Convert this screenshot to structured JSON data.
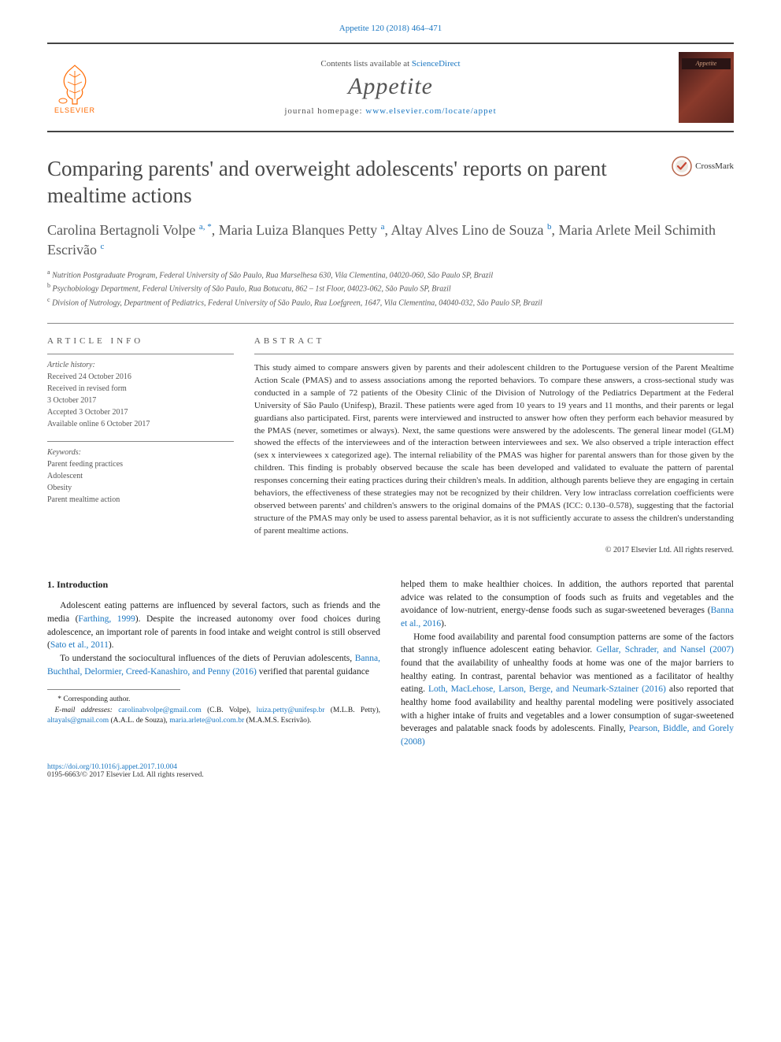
{
  "citation": "Appetite 120 (2018) 464–471",
  "banner": {
    "contents_prefix": "Contents lists available at ",
    "contents_link_text": "ScienceDirect",
    "journal": "Appetite",
    "homepage_prefix": "journal homepage: ",
    "homepage_url": "www.elsevier.com/locate/appet",
    "elsevier_label": "ELSEVIER",
    "cover_label": "Appetite"
  },
  "crossmark_label": "CrossMark",
  "title": "Comparing parents' and overweight adolescents' reports on parent mealtime actions",
  "authors_html": "Carolina Bertagnoli Volpe <sup>a, *</sup>, Maria Luiza Blanques Petty <sup>a</sup>, Altay Alves Lino de Souza <sup>b</sup>, Maria Arlete Meil Schimith Escrivão <sup>c</sup>",
  "affiliations": {
    "a": "Nutrition Postgraduate Program, Federal University of São Paulo, Rua Marselhesa 630, Vila Clementina, 04020-060, São Paulo SP, Brazil",
    "b": "Psychobiology Department, Federal University of São Paulo, Rua Botucatu, 862 – 1st Floor, 04023-062, São Paulo SP, Brazil",
    "c": "Division of Nutrology, Department of Pediatrics, Federal University of São Paulo, Rua Loefgreen, 1647, Vila Clementina, 04040-032, São Paulo SP, Brazil"
  },
  "info": {
    "heading": "ARTICLE INFO",
    "history_label": "Article history:",
    "history": [
      "Received 24 October 2016",
      "Received in revised form",
      "3 October 2017",
      "Accepted 3 October 2017",
      "Available online 6 October 2017"
    ],
    "keywords_label": "Keywords:",
    "keywords": [
      "Parent feeding practices",
      "Adolescent",
      "Obesity",
      "Parent mealtime action"
    ]
  },
  "abstract": {
    "heading": "ABSTRACT",
    "text": "This study aimed to compare answers given by parents and their adolescent children to the Portuguese version of the Parent Mealtime Action Scale (PMAS) and to assess associations among the reported behaviors. To compare these answers, a cross-sectional study was conducted in a sample of 72 patients of the Obesity Clinic of the Division of Nutrology of the Pediatrics Department at the Federal University of São Paulo (Unifesp), Brazil. These patients were aged from 10 years to 19 years and 11 months, and their parents or legal guardians also participated. First, parents were interviewed and instructed to answer how often they perform each behavior measured by the PMAS (never, sometimes or always). Next, the same questions were answered by the adolescents. The general linear model (GLM) showed the effects of the interviewees and of the interaction between interviewees and sex. We also observed a triple interaction effect (sex x interviewees x categorized age). The internal reliability of the PMAS was higher for parental answers than for those given by the children. This finding is probably observed because the scale has been developed and validated to evaluate the pattern of parental responses concerning their eating practices during their children's meals. In addition, although parents believe they are engaging in certain behaviors, the effectiveness of these strategies may not be recognized by their children. Very low intraclass correlation coefficients were observed between parents' and children's answers to the original domains of the PMAS (ICC: 0.130–0.578), suggesting that the factorial structure of the PMAS may only be used to assess parental behavior, as it is not sufficiently accurate to assess the children's understanding of parent mealtime actions.",
    "copyright": "© 2017 Elsevier Ltd. All rights reserved."
  },
  "section1": {
    "heading": "1. Introduction",
    "p1_pre": "Adolescent eating patterns are influenced by several factors, such as friends and the media (",
    "p1_cite1": "Farthing, 1999",
    "p1_mid": "). Despite the increased autonomy over food choices during adolescence, an important role of parents in food intake and weight control is still observed (",
    "p1_cite2": "Sato et al., 2011",
    "p1_post": ").",
    "p2_pre": "To understand the sociocultural influences of the diets of Peruvian adolescents, ",
    "p2_cite1": "Banna, Buchthal, Delormier, Creed-Kanashiro, and Penny (2016)",
    "p2_post": " verified that parental guidance",
    "p3_pre": "helped them to make healthier choices. In addition, the authors reported that parental advice was related to the consumption of foods such as fruits and vegetables and the avoidance of low-nutrient, energy-dense foods such as sugar-sweetened beverages (",
    "p3_cite1": "Banna et al., 2016",
    "p3_post": ").",
    "p4_pre": "Home food availability and parental food consumption patterns are some of the factors that strongly influence adolescent eating behavior. ",
    "p4_cite1": "Gellar, Schrader, and Nansel (2007)",
    "p4_mid1": " found that the availability of unhealthy foods at home was one of the major barriers to healthy eating. In contrast, parental behavior was mentioned as a facilitator of healthy eating. ",
    "p4_cite2": "Loth, MacLehose, Larson, Berge, and Neumark-Sztainer (2016)",
    "p4_mid2": " also reported that healthy home food availability and healthy parental modeling were positively associated with a higher intake of fruits and vegetables and a lower consumption of sugar-sweetened beverages and palatable snack foods by adolescents. Finally, ",
    "p4_cite3": "Pearson, Biddle, and Gorely (2008)"
  },
  "footnotes": {
    "corr_label": "* Corresponding author.",
    "email_label": "E-mail addresses:",
    "e1_addr": "carolinabvolpe@gmail.com",
    "e1_name": "(C.B. Volpe), ",
    "e2_addr": "luiza.petty@unifesp.br",
    "e2_name": "(M.L.B. Petty), ",
    "e3_addr": "altayals@gmail.com",
    "e3_name": "(A.A.L. de Souza), ",
    "e4_addr": "maria.arlete@uol.com.br",
    "e4_name": "(M.A.M.S. Escrivão)."
  },
  "doi": {
    "url": "https://doi.org/10.1016/j.appet.2017.10.004",
    "issn_line": "0195-6663/© 2017 Elsevier Ltd. All rights reserved."
  },
  "colors": {
    "link": "#1976c1",
    "rule": "#444444",
    "text_muted": "#555555",
    "elsevier_orange": "#ff6a00"
  }
}
